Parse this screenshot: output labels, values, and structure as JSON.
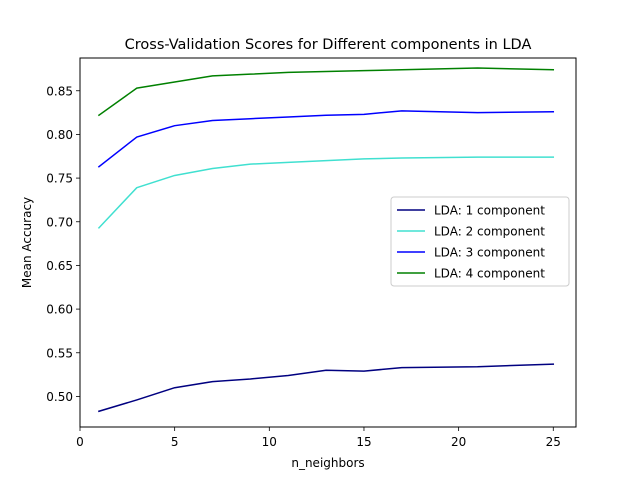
{
  "chart_data": {
    "type": "line",
    "title": "Cross-Validation Scores for Different components in LDA",
    "xlabel": "n_neighbors",
    "ylabel": "Mean Accuracy",
    "xlim": [
      0,
      26.2
    ],
    "ylim": [
      0.465,
      0.8875
    ],
    "xticks": [
      0,
      5,
      10,
      15,
      20,
      25
    ],
    "yticks": [
      0.5,
      0.55,
      0.6,
      0.65,
      0.7,
      0.75,
      0.8,
      0.85
    ],
    "grid": false,
    "legend_position": "center-right",
    "x": [
      1,
      3,
      5,
      7,
      9,
      11,
      13,
      15,
      17,
      21,
      25
    ],
    "series": [
      {
        "name": "LDA: 1 component",
        "color": "#000080",
        "values": [
          0.483,
          0.496,
          0.51,
          0.517,
          0.52,
          0.524,
          0.53,
          0.529,
          0.533,
          0.534,
          0.537
        ]
      },
      {
        "name": "LDA: 2 component",
        "color": "#40e0d0",
        "values": [
          0.693,
          0.739,
          0.753,
          0.761,
          0.766,
          0.768,
          0.77,
          0.772,
          0.773,
          0.774,
          0.774
        ]
      },
      {
        "name": "LDA: 3 component",
        "color": "#0000ff",
        "values": [
          0.763,
          0.797,
          0.81,
          0.816,
          0.818,
          0.82,
          0.822,
          0.823,
          0.827,
          0.825,
          0.826
        ]
      },
      {
        "name": "LDA: 4 component",
        "color": "#008000",
        "values": [
          0.822,
          0.853,
          0.86,
          0.867,
          0.869,
          0.871,
          0.872,
          0.873,
          0.874,
          0.876,
          0.874
        ]
      }
    ]
  }
}
